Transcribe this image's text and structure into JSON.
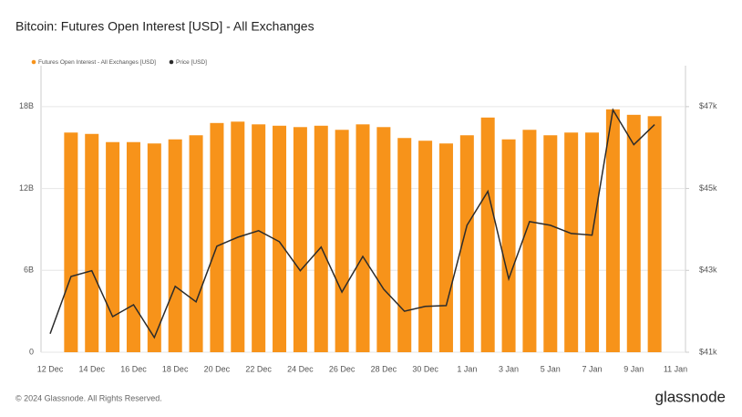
{
  "chart_data": {
    "type": "bar-line",
    "title": "Bitcoin: Futures Open Interest [USD] - All Exchanges",
    "categories": [
      "12 Dec",
      null,
      "14 Dec",
      null,
      "16 Dec",
      null,
      "18 Dec",
      null,
      "20 Dec",
      null,
      "22 Dec",
      null,
      "24 Dec",
      null,
      "26 Dec",
      null,
      "28 Dec",
      null,
      "30 Dec",
      null,
      "1 Jan",
      null,
      "3 Jan",
      null,
      "5 Jan",
      null,
      "7 Jan",
      null,
      "9 Jan",
      null,
      "11 Jan"
    ],
    "series": [
      {
        "name": "Futures Open Interest - All Exchanges [USD]",
        "color": "#f7931a",
        "kind": "bar",
        "values": [
          null,
          16.1,
          16.0,
          15.4,
          15.4,
          15.3,
          15.6,
          15.9,
          16.8,
          16.9,
          16.7,
          16.6,
          16.5,
          16.6,
          16.3,
          16.7,
          16.5,
          15.7,
          15.5,
          15.3,
          15.9,
          17.2,
          15.6,
          16.3,
          15.9,
          16.1,
          16.1,
          17.8,
          17.4,
          17.3,
          null
        ]
      },
      {
        "name": "Price [USD]",
        "color": "#2b2b2b",
        "kind": "line",
        "axis": "y2",
        "values": [
          41450,
          42850,
          42990,
          41870,
          42160,
          41360,
          42610,
          42230,
          43590,
          43810,
          43970,
          43700,
          42990,
          43570,
          42470,
          43340,
          42540,
          42000,
          42120,
          42140,
          44100,
          44930,
          42790,
          44190,
          44100,
          43900,
          43860,
          46920,
          46070,
          46560,
          null
        ]
      }
    ],
    "ylim": [
      0,
      21
    ],
    "yticks": [
      0,
      {
        "value": 6,
        "label": "6B"
      },
      {
        "value": 12,
        "label": "12B"
      },
      {
        "value": 18,
        "label": "18B"
      }
    ],
    "y2lim": [
      41000,
      48000
    ],
    "y2ticks": [
      {
        "value": 41000,
        "label": "$41k"
      },
      {
        "value": 43000,
        "label": "$43k"
      },
      {
        "value": 45000,
        "label": "$45k"
      },
      {
        "value": 47000,
        "label": "$47k"
      }
    ],
    "grid": true
  },
  "footer": "© 2024 Glassnode. All Rights Reserved.",
  "brand": "glassnode"
}
